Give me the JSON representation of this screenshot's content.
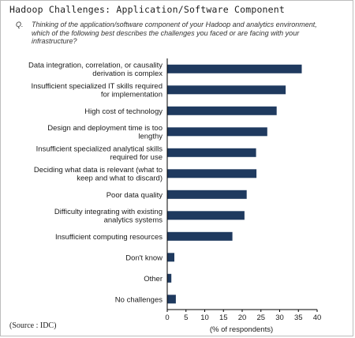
{
  "chart_data": {
    "type": "bar",
    "orientation": "horizontal",
    "title": "Hadoop Challenges: Application/Software Component",
    "question_label": "Q.",
    "question": "Thinking of the application/software component of your Hadoop and analytics environment, which of the following best describes the challenges you faced or are facing with your infrastructure?",
    "categories": [
      [
        "Data integration, correlation, or causality",
        "derivation is complex"
      ],
      [
        "Insufficient specialized IT skills required",
        "for implementation"
      ],
      [
        "High cost of technology"
      ],
      [
        "Design and deployment time is too",
        "lengthy"
      ],
      [
        "Insufficient specialized analytical skills",
        "required for use"
      ],
      [
        "Deciding what data is relevant (what to",
        "keep and what to discard)"
      ],
      [
        "Poor data quality"
      ],
      [
        "Difficulty integrating with existing",
        "analytics systems"
      ],
      [
        "Insufficient computing resources"
      ],
      [
        "Don't know"
      ],
      [
        "Other"
      ],
      [
        "No challenges"
      ]
    ],
    "values": [
      35.9,
      31.6,
      29.2,
      26.7,
      23.7,
      23.8,
      21.2,
      20.6,
      17.4,
      1.9,
      1.1,
      2.3
    ],
    "xlim": [
      0,
      40
    ],
    "xticks": [
      0,
      5,
      10,
      15,
      20,
      25,
      30,
      35,
      40
    ],
    "xlabel": "(% of respondents)",
    "bar_color": "#1f3a5f",
    "grid": false
  },
  "source": "(Source : IDC)"
}
